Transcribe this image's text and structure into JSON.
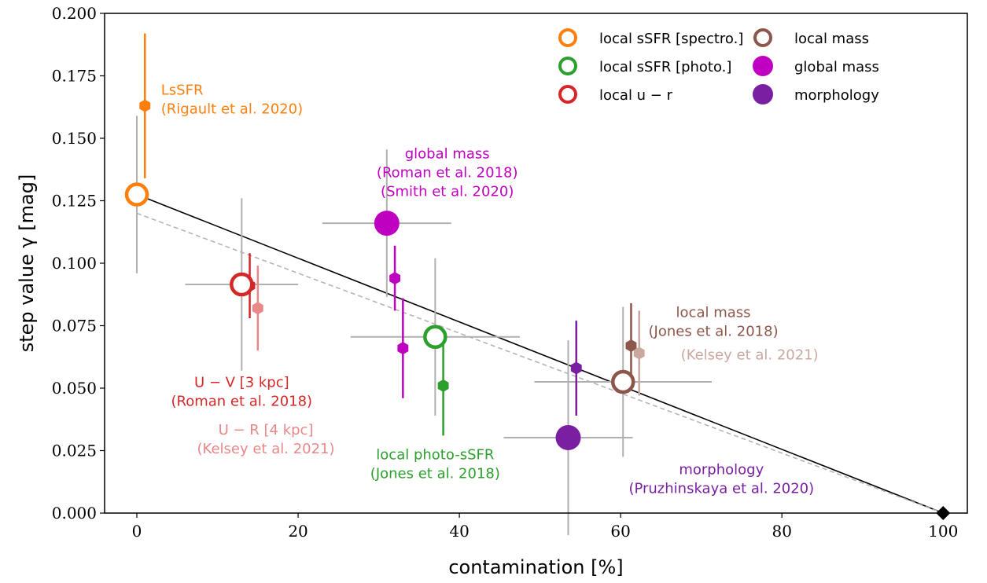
{
  "chart_data": {
    "type": "scatter",
    "xlabel": "contamination [%]",
    "ylabel": "step value γ [mag]",
    "xlim": [
      -4,
      103
    ],
    "ylim": [
      0,
      0.2
    ],
    "xticks": [
      "0",
      "20",
      "40",
      "60",
      "80",
      "100"
    ],
    "yticks": [
      "0.000",
      "0.025",
      "0.050",
      "0.075",
      "0.100",
      "0.125",
      "0.150",
      "0.175",
      "0.200"
    ],
    "grid": false,
    "legend_placement": "top-right",
    "colors": {
      "orange": "#ff7f0e",
      "green": "#2ca02c",
      "red": "#d62728",
      "light_red": "#e88888",
      "brown": "#8c564b",
      "light_brown": "#c9a99f",
      "magenta": "#c000c0",
      "purple": "#7a1fa2",
      "errorbar_gray": "#b0b0b0",
      "fit_line": "#000000",
      "dashed_line": "#b5b5b5"
    },
    "legend": [
      {
        "label": "local sSFR [spectro.]",
        "marker": "open-circle",
        "color": "#ff7f0e"
      },
      {
        "label": "local sSFR [photo.]",
        "marker": "open-circle",
        "color": "#2ca02c"
      },
      {
        "label": "local u − r",
        "marker": "open-circle",
        "color": "#d62728"
      },
      {
        "label": "local mass",
        "marker": "open-circle",
        "color": "#8c564b"
      },
      {
        "label": "global mass",
        "marker": "filled-circle",
        "color": "#c000c0"
      },
      {
        "label": "morphology",
        "marker": "filled-circle",
        "color": "#7a1fa2"
      }
    ],
    "circles": [
      {
        "x": 0,
        "y": 0.1275,
        "xerr": 0,
        "yerr": 0.0315,
        "marker": "open",
        "color": "#ff7f0e"
      },
      {
        "x": 13,
        "y": 0.0915,
        "xerr": 7.0,
        "yerr": 0.0345,
        "marker": "open",
        "color": "#d62728"
      },
      {
        "x": 31,
        "y": 0.116,
        "xerr": 8.0,
        "yerr": 0.0295,
        "marker": "filled",
        "color": "#c000c0"
      },
      {
        "x": 37,
        "y": 0.0705,
        "xerr": 10.5,
        "yerr": 0.0315,
        "marker": "open",
        "color": "#2ca02c"
      },
      {
        "x": 53.5,
        "y": 0.0302,
        "xerr": 8.0,
        "yerr": 0.039,
        "marker": "filled",
        "color": "#7a1fa2"
      },
      {
        "x": 60.3,
        "y": 0.0525,
        "xerr": 11.0,
        "yerr": 0.03,
        "marker": "open",
        "color": "#8c564b"
      }
    ],
    "hexagons": [
      {
        "x": 1,
        "y": 0.163,
        "ylo": 0.134,
        "yhi": 0.192,
        "color": "#ff7f0e"
      },
      {
        "x": 14,
        "y": 0.091,
        "ylo": 0.078,
        "yhi": 0.104,
        "color": "#d62728"
      },
      {
        "x": 15,
        "y": 0.082,
        "ylo": 0.065,
        "yhi": 0.099,
        "color": "#e88888"
      },
      {
        "x": 32,
        "y": 0.094,
        "ylo": 0.081,
        "yhi": 0.107,
        "color": "#c000c0"
      },
      {
        "x": 33,
        "y": 0.066,
        "ylo": 0.046,
        "yhi": 0.086,
        "color": "#c000c0"
      },
      {
        "x": 38,
        "y": 0.051,
        "ylo": 0.031,
        "yhi": 0.071,
        "color": "#2ca02c"
      },
      {
        "x": 54.5,
        "y": 0.058,
        "ylo": 0.039,
        "yhi": 0.077,
        "color": "#7a1fa2"
      },
      {
        "x": 61.3,
        "y": 0.067,
        "ylo": 0.05,
        "yhi": 0.084,
        "color": "#8c564b"
      },
      {
        "x": 62.3,
        "y": 0.064,
        "ylo": 0.047,
        "yhi": 0.081,
        "color": "#c9a99f"
      }
    ],
    "fit_line": {
      "x": [
        0,
        100
      ],
      "y": [
        0.1275,
        0
      ]
    },
    "dashed_line": {
      "x": [
        0,
        100
      ],
      "y": [
        0.12,
        0
      ]
    },
    "endpoint": {
      "x": 100,
      "y": 0
    },
    "annotations": [
      {
        "lines": [
          "LsSFR",
          "(Rigault et al. 2020)"
        ],
        "color": "#ff7f0e",
        "anchor": "start",
        "x": 3,
        "y": 0.1675
      },
      {
        "lines": [
          "U − V [3 kpc]",
          "(Roman et al. 2018)"
        ],
        "color": "#d62728",
        "anchor": "middle",
        "x": 13,
        "y": 0.0505
      },
      {
        "lines": [
          "U − R [4 kpc]",
          "(Kelsey et al. 2021)"
        ],
        "color": "#e88888",
        "anchor": "middle",
        "x": 16,
        "y": 0.0315
      },
      {
        "lines": [
          "global mass",
          "(Roman et al. 2018)",
          "(Smith et al. 2020)"
        ],
        "color": "#c000c0",
        "anchor": "middle",
        "x": 38.5,
        "y": 0.142
      },
      {
        "lines": [
          "local photo-sSFR",
          "(Jones et al. 2018)"
        ],
        "color": "#2ca02c",
        "anchor": "middle",
        "x": 37,
        "y": 0.0215
      },
      {
        "lines": [
          "local mass",
          "(Jones et al. 2018)"
        ],
        "color": "#8c564b",
        "anchor": "middle",
        "x": 71.5,
        "y": 0.0785
      },
      {
        "lines": [
          "(Kelsey et al. 2021)"
        ],
        "color": "#c9a99f",
        "anchor": "middle",
        "x": 76,
        "y": 0.0615
      },
      {
        "lines": [
          "morphology",
          "(Pruzhinskaya et al. 2020)"
        ],
        "color": "#7a1fa2",
        "anchor": "middle",
        "x": 72.5,
        "y": 0.0155
      }
    ]
  }
}
